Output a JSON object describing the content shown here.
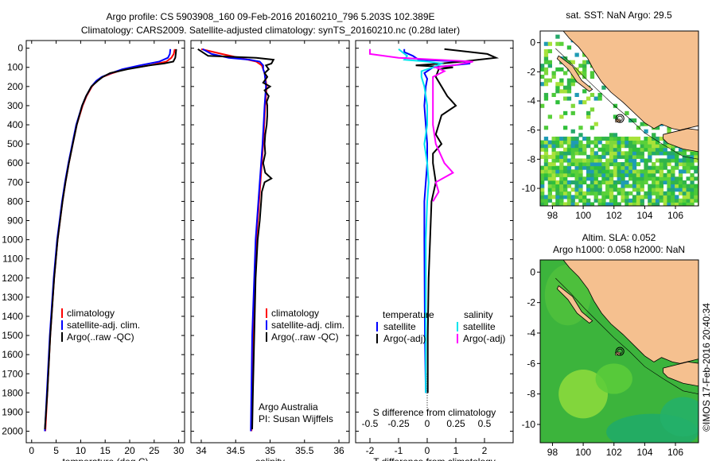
{
  "header": {
    "title_line1": "Argo profile: CS 5903908_160 09-Feb-2016 20160210_796 5.203S 102.389E",
    "title_line2": "Climatology: CARS2009. Satellite-adjusted climatology: synTS_20160210.nc (0.28d later)"
  },
  "colors": {
    "climatology": "#ff0000",
    "satellite": "#0000ff",
    "argo": "#000000",
    "salinity_satellite": "#00e5ee",
    "salinity_argo": "#ff00ff",
    "land": "#f5c08f"
  },
  "chart_data": [
    {
      "type": "line",
      "panel": "temperature",
      "xlabel": "temperature (deg C)",
      "ylim": [
        2050,
        0
      ],
      "xlim": [
        -1,
        31
      ],
      "x_ticks": [
        "0",
        "5",
        "10",
        "15",
        "20",
        "25",
        "30"
      ],
      "y_ticks": [
        "0",
        "100",
        "200",
        "300",
        "400",
        "500",
        "600",
        "700",
        "800",
        "900",
        "1000",
        "1100",
        "1200",
        "1300",
        "1400",
        "1500",
        "1600",
        "1700",
        "1800",
        "1900",
        "2000"
      ],
      "legend": [
        "climatology",
        "satellite-adj. clim.",
        "Argo(..raw -QC)"
      ],
      "series": [
        {
          "name": "climatology",
          "color": "red",
          "depth": [
            5,
            30,
            50,
            70,
            90,
            110,
            130,
            150,
            170,
            200,
            250,
            300,
            400,
            500,
            600,
            700,
            800,
            1000,
            1200,
            1500,
            1800,
            2000
          ],
          "values": [
            29.2,
            29,
            28.5,
            27.5,
            24,
            19,
            16.5,
            14.5,
            13.3,
            12.3,
            11.2,
            10.4,
            9.2,
            8.4,
            7.6,
            6.9,
            6.3,
            5.3,
            4.6,
            3.8,
            3.2,
            2.8
          ]
        },
        {
          "name": "satellite-adj. clim.",
          "color": "blue",
          "depth": [
            5,
            30,
            50,
            70,
            90,
            110,
            130,
            150,
            170,
            200,
            250,
            300,
            400,
            500,
            600,
            700,
            800,
            1000,
            1200,
            1500,
            1800,
            2000
          ],
          "values": [
            28.3,
            28.2,
            27.8,
            26,
            22,
            18.5,
            16.2,
            14.3,
            13.2,
            12.2,
            11.1,
            10.3,
            9.1,
            8.3,
            7.5,
            6.8,
            6.2,
            5.2,
            4.5,
            3.7,
            3.1,
            2.7
          ]
        },
        {
          "name": "Argo(..raw -QC)",
          "color": "black",
          "depth": [
            5,
            30,
            50,
            70,
            80,
            90,
            110,
            130,
            150,
            170,
            200,
            250,
            300,
            400,
            500,
            600,
            700,
            800,
            1000,
            1200,
            1500,
            1800,
            1990
          ],
          "values": [
            29.5,
            29.4,
            29.3,
            28.9,
            27,
            24,
            19.5,
            16,
            14.5,
            13.5,
            12.2,
            11.1,
            10.3,
            9.2,
            8.4,
            7.6,
            6.9,
            6.3,
            5.3,
            4.6,
            3.8,
            3.2,
            2.7
          ]
        }
      ]
    },
    {
      "type": "line",
      "panel": "salinity",
      "xlabel": "salinity",
      "ylim": [
        2050,
        0
      ],
      "xlim": [
        33.85,
        36.1
      ],
      "x_ticks": [
        "34",
        "34.5",
        "35",
        "35.5",
        "36"
      ],
      "legend": [
        "climatology",
        "satellite-adj. clim.",
        "Argo(..raw -QC)"
      ],
      "annotations": [
        "Argo Australia",
        "PI: Susan Wijffels"
      ],
      "series": [
        {
          "name": "climatology",
          "color": "red",
          "depth": [
            5,
            30,
            50,
            70,
            90,
            110,
            130,
            200,
            300,
            500,
            700,
            1000,
            1500,
            2000
          ],
          "values": [
            34.0,
            34.3,
            34.55,
            34.8,
            34.88,
            34.9,
            34.92,
            34.95,
            34.93,
            34.9,
            34.86,
            34.8,
            34.75,
            34.73
          ]
        },
        {
          "name": "satellite-adj. clim.",
          "color": "blue",
          "depth": [
            5,
            30,
            50,
            60,
            70,
            90,
            110,
            130,
            200,
            300,
            500,
            700,
            1000,
            1500,
            2000
          ],
          "values": [
            34.02,
            34.15,
            34.4,
            34.7,
            34.85,
            34.9,
            34.9,
            34.92,
            34.94,
            34.92,
            34.89,
            34.85,
            34.79,
            34.74,
            34.72
          ]
        },
        {
          "name": "Argo(..raw -QC)",
          "color": "black",
          "depth": [
            5,
            40,
            50,
            60,
            80,
            90,
            110,
            130,
            150,
            180,
            200,
            220,
            250,
            280,
            300,
            350,
            400,
            450,
            500,
            550,
            600,
            650,
            680,
            700,
            750,
            800,
            900,
            1000,
            1200,
            1500,
            1800,
            1990
          ],
          "values": [
            33.95,
            34.1,
            34.8,
            35.05,
            35.02,
            34.94,
            34.98,
            34.92,
            34.96,
            34.9,
            35.0,
            34.92,
            34.98,
            34.95,
            34.96,
            34.96,
            34.95,
            34.93,
            34.92,
            34.93,
            34.9,
            34.93,
            35.02,
            34.92,
            34.88,
            34.87,
            34.85,
            34.82,
            34.79,
            34.77,
            34.75,
            34.74
          ]
        }
      ]
    },
    {
      "type": "line",
      "panel": "difference",
      "xlabel_top": "S difference from climatology",
      "xlabel_bottom": "T difference from climatology",
      "ylim": [
        2050,
        0
      ],
      "xlim": [
        -2.5,
        3
      ],
      "x_ticks_T": [
        "-2",
        "-1",
        "0",
        "1",
        "2"
      ],
      "x_ticks_S": [
        "-0.5",
        "-0.25",
        "0",
        "0.25",
        "0.5"
      ],
      "legend_temperature": [
        "temperature",
        "satellite",
        "Argo(-adj)"
      ],
      "legend_salinity": [
        "salinity",
        "satellite",
        "Argo(-adj)"
      ],
      "series": [
        {
          "name": "satellite",
          "color": "blue",
          "depth": [
            5,
            20,
            40,
            60,
            70,
            80,
            100,
            130,
            160,
            200,
            300,
            400,
            500,
            600,
            800,
            1000,
            1500,
            1800
          ],
          "values": [
            -0.8,
            -0.8,
            -0.5,
            -0.3,
            1.3,
            1.5,
            0.2,
            -0.1,
            0,
            -0.05,
            -0.1,
            -0.05,
            0,
            0,
            -0.1,
            -0.1,
            -0.08,
            -0.05
          ]
        },
        {
          "name": "Argo(-adj)",
          "color": "black",
          "depth": [
            5,
            30,
            50,
            70,
            80,
            90,
            100,
            110,
            150,
            200,
            250,
            300,
            350,
            400,
            450,
            500,
            550,
            600,
            700,
            800,
            1000,
            1200,
            1500,
            1800
          ],
          "values": [
            0.6,
            2.1,
            2.4,
            1.2,
            0.5,
            -0.4,
            0.9,
            0.4,
            0.3,
            0.5,
            0.7,
            1.0,
            0.5,
            0.4,
            0.3,
            0.5,
            0.2,
            0.2,
            0.3,
            0.15,
            0.1,
            0.05,
            0.02,
            0.02
          ]
        },
        {
          "name": "salinity satellite",
          "color": "cyan",
          "depth": [
            5,
            40,
            60,
            70,
            80,
            100,
            120,
            150,
            200,
            300,
            400,
            500,
            600,
            700,
            800,
            1000,
            1500,
            1800
          ],
          "values": [
            -1.0,
            -0.7,
            -0.8,
            0.0,
            0.5,
            0.2,
            -0.2,
            -0.2,
            -0.1,
            0.0,
            0.0,
            -0.1,
            0.0,
            0.05,
            0.0,
            -0.05,
            -0.05,
            -0.05
          ]
        },
        {
          "name": "salinity Argo(-adj)",
          "color": "magenta",
          "depth": [
            5,
            30,
            50,
            70,
            90,
            100,
            120,
            150,
            200,
            300,
            400,
            500,
            600,
            650,
            700,
            750,
            800
          ],
          "values": [
            -2.0,
            -2.0,
            -1.0,
            1.6,
            0.9,
            0.3,
            0.6,
            0.2,
            0.2,
            0.2,
            0.2,
            0.3,
            0.6,
            0.9,
            0.3,
            0.4,
            0.2
          ]
        }
      ]
    },
    {
      "type": "heatmap",
      "panel": "map-sst",
      "title": "sat. SST: NaN Argo: 29.5",
      "x_ticks": [
        "98",
        "100",
        "102",
        "104",
        "106"
      ],
      "y_ticks": [
        "0",
        "-2",
        "-4",
        "-6",
        "-8",
        "-10"
      ],
      "xlim": [
        97.2,
        107.5
      ],
      "ylim": [
        -11.2,
        0.8
      ],
      "marker": [
        102.389,
        -5.203
      ]
    },
    {
      "type": "heatmap",
      "panel": "map-sla",
      "title_line1": "Altim. SLA: 0.052",
      "title_line2": "Argo h1000: 0.058 h2000: NaN",
      "x_ticks": [
        "98",
        "100",
        "102",
        "104",
        "106"
      ],
      "y_ticks": [
        "0",
        "-2",
        "-4",
        "-6",
        "-8",
        "-10"
      ],
      "xlim": [
        97.2,
        107.5
      ],
      "ylim": [
        -11.2,
        0.8
      ],
      "marker": [
        102.389,
        -5.203
      ]
    }
  ],
  "footer": {
    "credit": "©IMOS 17-Feb-2016 20:40:34"
  }
}
